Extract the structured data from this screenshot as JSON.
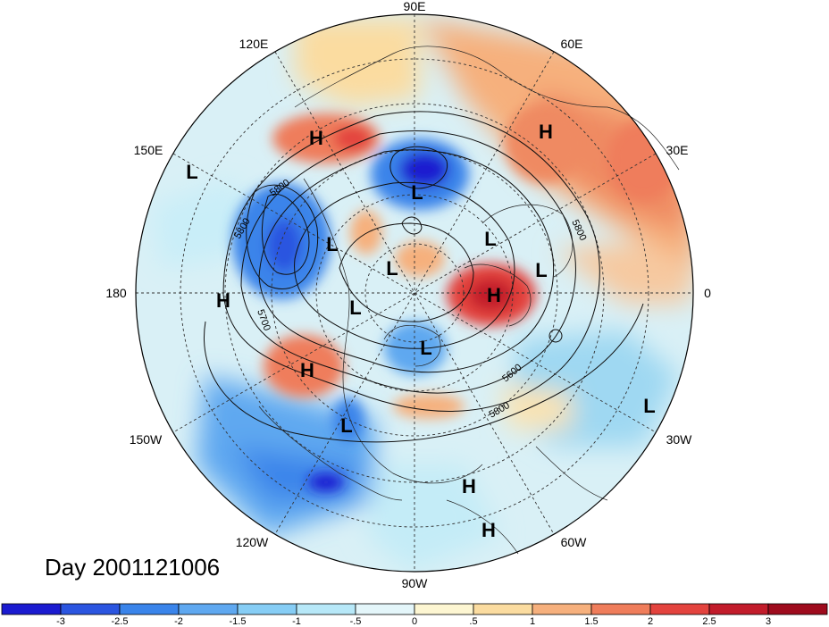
{
  "title": "Day 2001121006",
  "lon_labels": {
    "lon_90e": "90E",
    "lon_120e": "120E",
    "lon_60e": "60E",
    "lon_150e": "150E",
    "lon_30e": "30E",
    "lon_180": "180",
    "lon_0": "0",
    "lon_150w": "150W",
    "lon_30w": "30W",
    "lon_120w": "120W",
    "lon_60w": "60W",
    "lon_90w": "90W"
  },
  "pressure_centers": [
    {
      "label": "H"
    },
    {
      "label": "H"
    },
    {
      "label": "L"
    },
    {
      "label": "L"
    },
    {
      "label": "L"
    },
    {
      "label": "L"
    },
    {
      "label": "L"
    },
    {
      "label": "H"
    },
    {
      "label": "L"
    },
    {
      "label": "H"
    },
    {
      "label": "L"
    },
    {
      "label": "L"
    },
    {
      "label": "H"
    },
    {
      "label": "L"
    },
    {
      "label": "L"
    },
    {
      "label": "H"
    },
    {
      "label": "H"
    }
  ],
  "contour_labels": {
    "c1": "5800",
    "c2": "5800",
    "c3": "5700",
    "c4": "5800",
    "c5": "5600",
    "c6": "5800"
  },
  "colorbar": {
    "tick_labels": [
      "-3",
      "-2.5",
      "-2",
      "-1.5",
      "-1",
      "-.5",
      "0",
      ".5",
      "1",
      "1.5",
      "2",
      "2.5",
      "3"
    ],
    "colors": [
      "#1b1bd0",
      "#2b55e0",
      "#3a84ea",
      "#5fa8f0",
      "#86cdf5",
      "#b7e8f8",
      "#e4f6fa",
      "#fdf6d2",
      "#fbdca0",
      "#f6b07d",
      "#ef7d5b",
      "#e3433e",
      "#c21c2b",
      "#9e0b1d"
    ]
  }
}
